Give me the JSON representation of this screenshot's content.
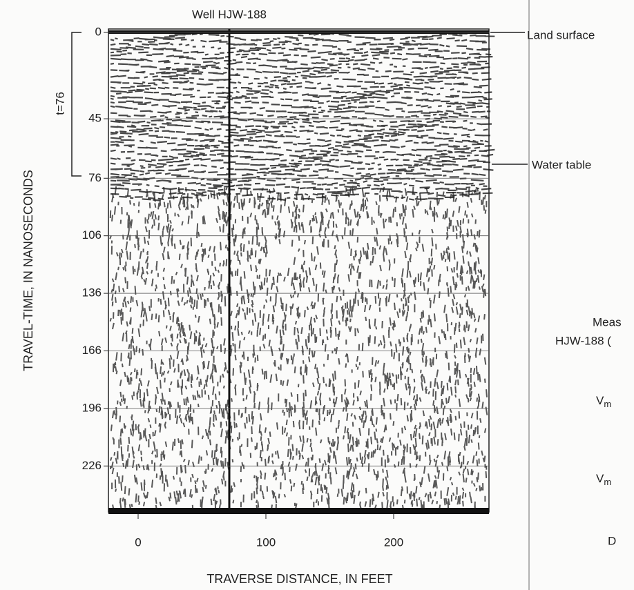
{
  "figure": {
    "well_label": "Well HJW-188",
    "y_axis_label": "TRAVEL-TIME, IN NANOSECONDS",
    "x_axis_label": "TRAVERSE DISTANCE, IN FEET",
    "yticks": [
      0,
      45,
      76,
      106,
      136,
      166,
      196,
      226
    ],
    "xticks": [
      0,
      100,
      200
    ],
    "bracket_label": "t=76",
    "annotations": [
      "Land surface",
      "Water table"
    ],
    "side_text": {
      "line1": "Meas",
      "line2": "HJW-188 (",
      "v1": {
        "base": "V",
        "sub": "m"
      },
      "v2": {
        "base": "V",
        "sub": "m"
      },
      "last": "D"
    }
  }
}
